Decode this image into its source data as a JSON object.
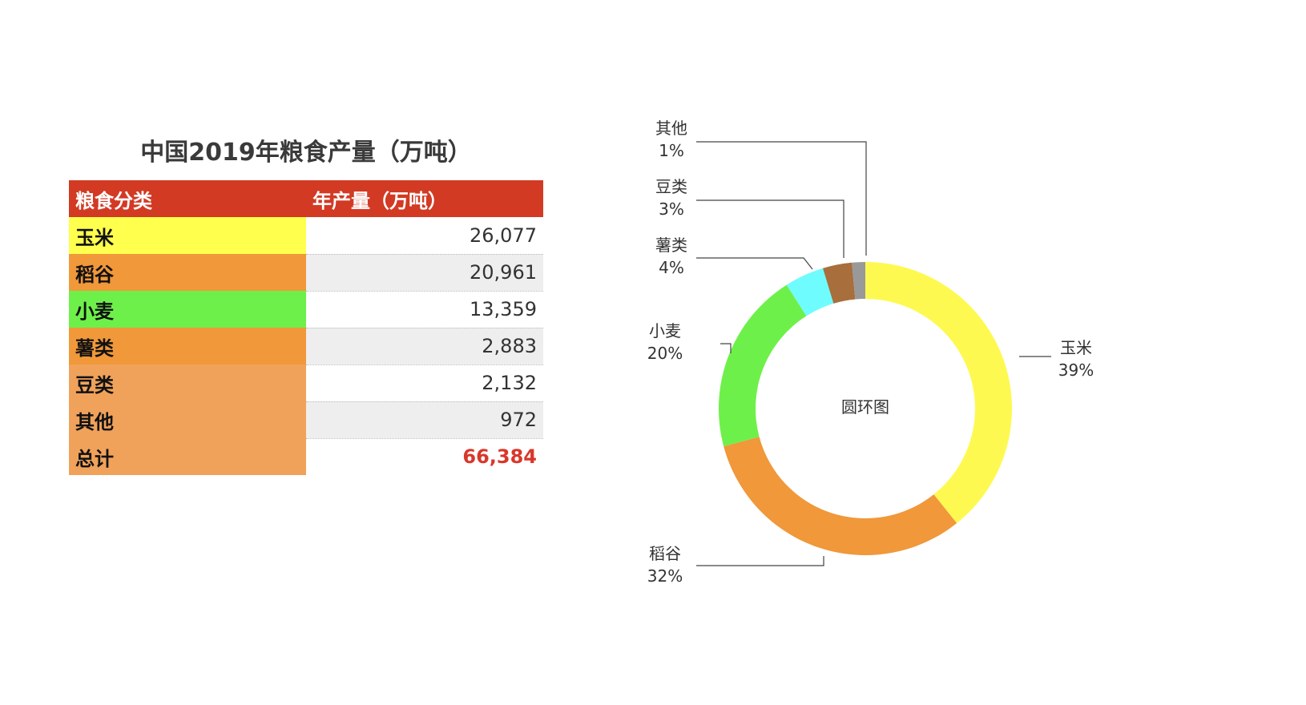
{
  "table": {
    "title": "中国2019年粮食产量（万吨）",
    "headers": [
      "粮食分类",
      "年产量（万吨）"
    ],
    "rows": [
      {
        "category": "玉米",
        "value": "26,077",
        "color": "#ffff4d"
      },
      {
        "category": "稻谷",
        "value": "20,961",
        "color": "#f0983a"
      },
      {
        "category": "小麦",
        "value": "13,359",
        "color": "#6ef04a"
      },
      {
        "category": "薯类",
        "value": "2,883",
        "color": "#f0983a"
      },
      {
        "category": "豆类",
        "value": "2,132",
        "color": "#f0a25a"
      },
      {
        "category": "其他",
        "value": "972",
        "color": "#f0a25a"
      }
    ],
    "total": {
      "category": "总计",
      "value": "66,384",
      "color": "#f0a25a"
    }
  },
  "chart_data": {
    "type": "pie",
    "variant": "donut",
    "center_label": "圆环图",
    "categories": [
      "玉米",
      "稻谷",
      "小麦",
      "薯类",
      "豆类",
      "其他"
    ],
    "values": [
      26077,
      20961,
      13359,
      2883,
      2132,
      972
    ],
    "percent_labels": [
      "39%",
      "32%",
      "20%",
      "4%",
      "3%",
      "1%"
    ],
    "colors": [
      "#fef950",
      "#f0983a",
      "#6ef04a",
      "#6ffcff",
      "#a86e3c",
      "#999999"
    ],
    "start_angle": "12 o'clock",
    "direction": "clockwise",
    "legend": "none"
  }
}
